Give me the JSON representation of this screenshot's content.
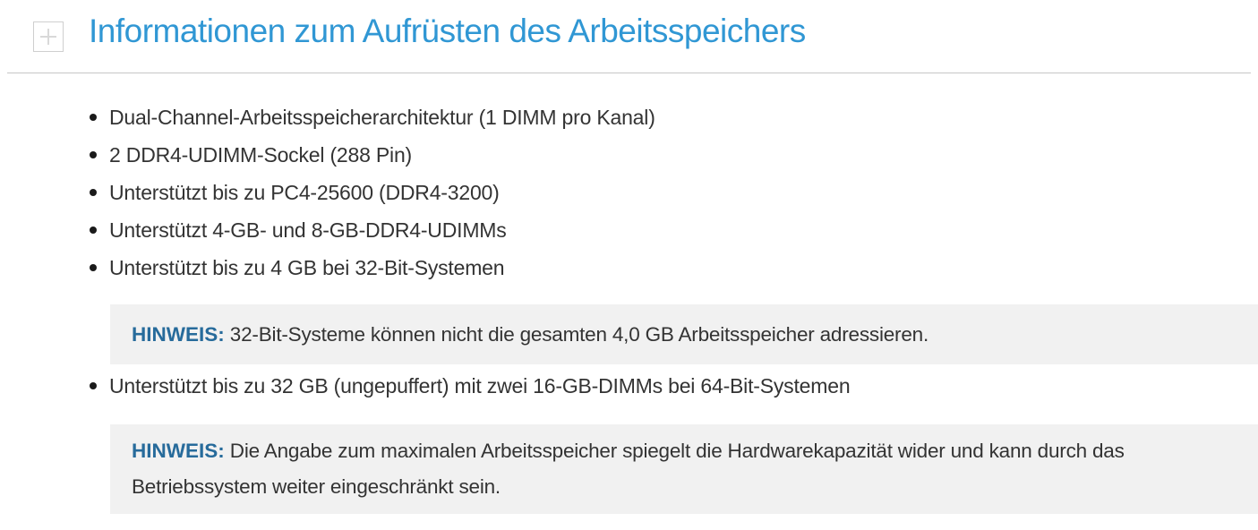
{
  "header": {
    "expand_button_glyph": "+",
    "title": "Informationen zum Aufrüsten des Arbeitsspeichers"
  },
  "lists": {
    "main": [
      "Dual-Channel-Arbeitsspeicherarchitektur (1 DIMM pro Kanal)",
      "2 DDR4-UDIMM-Sockel (288 Pin)",
      "Unterstützt bis zu PC4-25600 (DDR4-3200)",
      "Unterstützt 4-GB- und 8-GB-DDR4-UDIMMs",
      "Unterstützt bis zu 4 GB bei 32-Bit-Systemen"
    ],
    "after_note1": [
      "Unterstützt bis zu 32 GB (ungepuffert) mit zwei 16-GB-DIMMs bei 64-Bit-Systemen"
    ]
  },
  "notes": {
    "note1": {
      "label": "HINWEIS:",
      "text": " 32-Bit-Systeme können nicht die gesamten 4,0 GB Arbeitsspeicher adressieren."
    },
    "note2": {
      "label": "HINWEIS:",
      "text": " Die Angabe zum maximalen Arbeitsspeicher spiegelt die Hardwarekapazität wider und kann durch das Betriebssystem weiter eingeschränkt sein."
    }
  },
  "colors": {
    "title_blue": "#3097d4",
    "note_label_blue": "#276b9b",
    "note_background": "#f1f1f1",
    "body_text": "#333333",
    "divider_gray": "#c6c6c6",
    "expander_border": "#cfcfcf",
    "expander_glyph": "#d9d9d9",
    "bullet_dot": "#1a1a1a"
  }
}
